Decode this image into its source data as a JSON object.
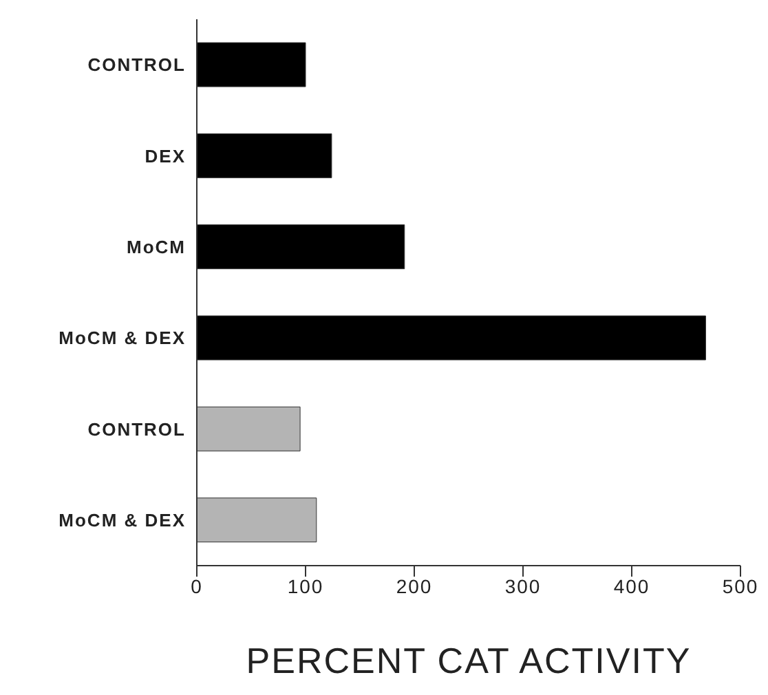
{
  "chart_data": {
    "type": "bar",
    "orientation": "horizontal",
    "xlabel": "PERCENT CAT ACTIVITY",
    "categories": [
      "CONTROL",
      "DEX",
      "MoCM",
      "MoCM & DEX",
      "CONTROL",
      "MoCM & DEX"
    ],
    "values": [
      100,
      124,
      191,
      468,
      95,
      110
    ],
    "colors": [
      "#000000",
      "#000000",
      "#000000",
      "#000000",
      "#b4b4b4",
      "#b4b4b4"
    ],
    "xlim": [
      0,
      500
    ],
    "xticks": [
      0,
      100,
      200,
      300,
      400,
      500
    ],
    "grid": false
  }
}
